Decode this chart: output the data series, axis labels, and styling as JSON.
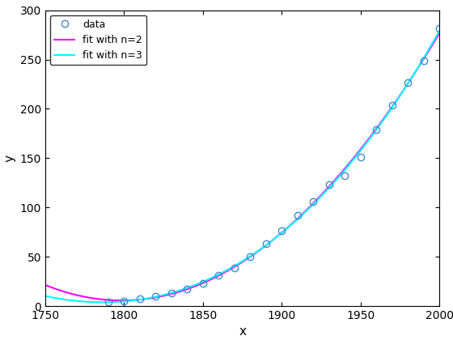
{
  "xlabel": "x",
  "ylabel": "y",
  "xlim": [
    1750,
    2000
  ],
  "ylim": [
    0,
    300
  ],
  "xticks": [
    1750,
    1800,
    1850,
    1900,
    1950,
    2000
  ],
  "yticks": [
    0,
    50,
    100,
    150,
    200,
    250,
    300
  ],
  "data_x": [
    1790,
    1800,
    1810,
    1820,
    1830,
    1840,
    1850,
    1860,
    1870,
    1880,
    1890,
    1900,
    1910,
    1920,
    1930,
    1940,
    1950,
    1960,
    1970,
    1980,
    1990,
    2000
  ],
  "data_y": [
    3.9,
    5.3,
    7.2,
    9.6,
    12.9,
    17.1,
    23.2,
    31.4,
    38.6,
    50.2,
    63.0,
    76.2,
    92.2,
    106.0,
    123.2,
    132.2,
    151.3,
    179.3,
    203.3,
    226.5,
    248.7,
    281.4
  ],
  "fit2_color": "#ff00ff",
  "fit3_color": "#00ffff",
  "data_color": "#4488cc",
  "legend_labels": [
    "data",
    "fit with n=2",
    "fit with n=3"
  ],
  "background_color": "#ffffff",
  "line_width": 1.5,
  "marker_size": 6
}
